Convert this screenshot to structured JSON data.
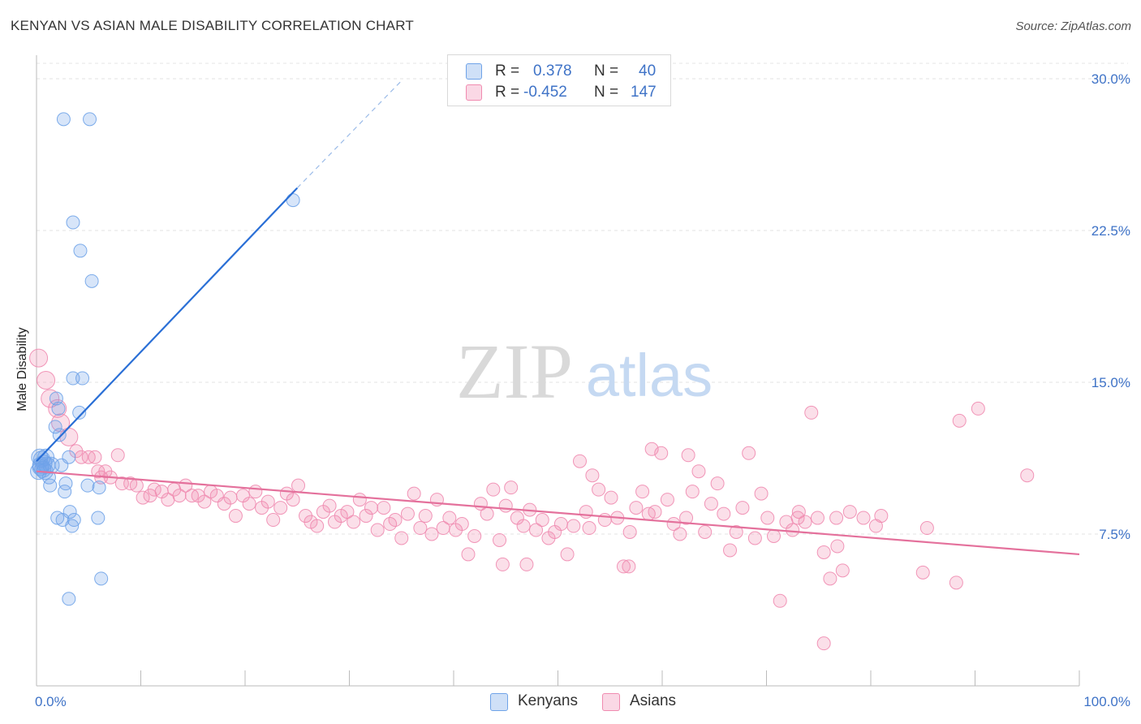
{
  "title": "KENYAN VS ASIAN MALE DISABILITY CORRELATION CHART",
  "source": "Source: ZipAtlas.com",
  "watermark": {
    "zip": "ZIP",
    "atlas": "atlas"
  },
  "legend": {
    "rows": [
      {
        "r_label": "R =",
        "r_value": "0.378",
        "n_label": "N =",
        "n_value": "40",
        "color": "#6fa3e8"
      },
      {
        "r_label": "R =",
        "r_value": "-0.452",
        "n_label": "N =",
        "n_value": "147",
        "color": "#f08bb0"
      }
    ]
  },
  "chart_data": {
    "type": "scatter",
    "title": "KENYAN VS ASIAN MALE DISABILITY CORRELATION CHART",
    "xlabel": "",
    "ylabel": "Male Disability",
    "xlim": [
      0,
      100
    ],
    "ylim": [
      0,
      30
    ],
    "x_ticks": [
      "0.0%",
      "100.0%"
    ],
    "y_ticks": [
      {
        "value": 7.5,
        "label": "7.5%"
      },
      {
        "value": 15.0,
        "label": "15.0%"
      },
      {
        "value": 22.5,
        "label": "22.5%"
      },
      {
        "value": 30.0,
        "label": "30.0%"
      }
    ],
    "grid": true,
    "series": [
      {
        "name": "Kenyans",
        "color": "#6fa3e8",
        "line_color": "#2a6fd6",
        "trend": {
          "x0": 0,
          "y0": 11.1,
          "x1": 25,
          "y1": 24.6,
          "dash_x1": 35,
          "dash_y1": 29.9
        },
        "points": [
          [
            2.6,
            28.0
          ],
          [
            5.1,
            28.0
          ],
          [
            24.6,
            24.0
          ],
          [
            3.5,
            22.9
          ],
          [
            4.2,
            21.5
          ],
          [
            5.3,
            20.0
          ],
          [
            3.5,
            15.2
          ],
          [
            4.4,
            15.2
          ],
          [
            1.9,
            14.2
          ],
          [
            4.1,
            13.5
          ],
          [
            2.1,
            13.7
          ],
          [
            1.8,
            12.8
          ],
          [
            2.2,
            12.4
          ],
          [
            0.3,
            11.3
          ],
          [
            0.5,
            11.2
          ],
          [
            0.9,
            11.3
          ],
          [
            3.1,
            11.3
          ],
          [
            0.7,
            11.0
          ],
          [
            0.4,
            10.9
          ],
          [
            0.8,
            10.6
          ],
          [
            1.4,
            10.9
          ],
          [
            2.4,
            10.9
          ],
          [
            0.2,
            10.6
          ],
          [
            0.6,
            10.7
          ],
          [
            1.2,
            10.3
          ],
          [
            1.3,
            9.9
          ],
          [
            4.9,
            9.9
          ],
          [
            6.0,
            9.8
          ],
          [
            2.7,
            9.6
          ],
          [
            3.2,
            8.6
          ],
          [
            2.0,
            8.3
          ],
          [
            2.5,
            8.2
          ],
          [
            3.6,
            8.2
          ],
          [
            5.9,
            8.3
          ],
          [
            3.4,
            7.9
          ],
          [
            6.2,
            5.3
          ],
          [
            3.1,
            4.3
          ],
          [
            0.4,
            10.8
          ],
          [
            1.0,
            10.9
          ],
          [
            2.8,
            10.0
          ]
        ]
      },
      {
        "name": "Asians",
        "color": "#f08bb0",
        "line_color": "#e4719c",
        "trend": {
          "x0": 0,
          "y0": 10.6,
          "x1": 100,
          "y1": 6.5
        },
        "points": [
          [
            0.2,
            16.2
          ],
          [
            0.9,
            15.1
          ],
          [
            1.3,
            14.2
          ],
          [
            2.0,
            13.7
          ],
          [
            2.3,
            13.0
          ],
          [
            3.1,
            12.3
          ],
          [
            3.8,
            11.6
          ],
          [
            4.3,
            11.3
          ],
          [
            5.0,
            11.3
          ],
          [
            5.6,
            11.3
          ],
          [
            7.8,
            11.4
          ],
          [
            5.9,
            10.6
          ],
          [
            6.2,
            10.3
          ],
          [
            6.6,
            10.6
          ],
          [
            7.1,
            10.3
          ],
          [
            8.2,
            10.0
          ],
          [
            9.0,
            10.0
          ],
          [
            9.6,
            9.9
          ],
          [
            10.2,
            9.3
          ],
          [
            10.9,
            9.4
          ],
          [
            11.3,
            9.7
          ],
          [
            12.0,
            9.6
          ],
          [
            12.6,
            9.2
          ],
          [
            13.2,
            9.7
          ],
          [
            13.7,
            9.4
          ],
          [
            14.3,
            9.9
          ],
          [
            14.9,
            9.4
          ],
          [
            15.5,
            9.4
          ],
          [
            16.1,
            9.1
          ],
          [
            16.7,
            9.6
          ],
          [
            17.3,
            9.4
          ],
          [
            18.0,
            9.0
          ],
          [
            18.6,
            9.3
          ],
          [
            19.1,
            8.4
          ],
          [
            19.8,
            9.4
          ],
          [
            20.4,
            9.0
          ],
          [
            21.0,
            9.6
          ],
          [
            21.6,
            8.8
          ],
          [
            22.2,
            9.1
          ],
          [
            22.7,
            8.2
          ],
          [
            23.4,
            8.8
          ],
          [
            24.0,
            9.5
          ],
          [
            24.6,
            9.2
          ],
          [
            25.1,
            9.9
          ],
          [
            25.8,
            8.4
          ],
          [
            26.3,
            8.1
          ],
          [
            26.9,
            7.9
          ],
          [
            27.5,
            8.6
          ],
          [
            28.1,
            8.9
          ],
          [
            28.6,
            8.1
          ],
          [
            29.2,
            8.4
          ],
          [
            29.8,
            8.6
          ],
          [
            30.4,
            8.1
          ],
          [
            31.0,
            9.2
          ],
          [
            31.6,
            8.4
          ],
          [
            32.1,
            8.8
          ],
          [
            32.7,
            7.7
          ],
          [
            33.3,
            8.8
          ],
          [
            33.9,
            8.0
          ],
          [
            34.4,
            8.2
          ],
          [
            35.0,
            7.3
          ],
          [
            35.6,
            8.5
          ],
          [
            36.2,
            9.5
          ],
          [
            36.8,
            7.8
          ],
          [
            37.3,
            8.4
          ],
          [
            37.9,
            7.5
          ],
          [
            38.4,
            9.2
          ],
          [
            39.0,
            7.8
          ],
          [
            39.6,
            8.3
          ],
          [
            40.2,
            7.7
          ],
          [
            40.8,
            8.0
          ],
          [
            41.4,
            6.5
          ],
          [
            42.0,
            7.4
          ],
          [
            42.6,
            9.0
          ],
          [
            43.2,
            8.5
          ],
          [
            43.8,
            9.7
          ],
          [
            44.4,
            7.2
          ],
          [
            45.0,
            8.9
          ],
          [
            45.5,
            9.8
          ],
          [
            46.1,
            8.3
          ],
          [
            46.7,
            7.9
          ],
          [
            47.3,
            8.7
          ],
          [
            47.9,
            7.7
          ],
          [
            48.5,
            8.2
          ],
          [
            49.1,
            7.3
          ],
          [
            49.7,
            7.6
          ],
          [
            50.3,
            8.0
          ],
          [
            50.9,
            6.5
          ],
          [
            51.5,
            7.9
          ],
          [
            52.1,
            11.1
          ],
          [
            52.7,
            8.6
          ],
          [
            53.3,
            10.4
          ],
          [
            53.9,
            9.7
          ],
          [
            54.5,
            8.2
          ],
          [
            55.1,
            9.3
          ],
          [
            55.7,
            8.3
          ],
          [
            56.3,
            5.9
          ],
          [
            56.9,
            7.6
          ],
          [
            57.5,
            8.8
          ],
          [
            58.1,
            9.6
          ],
          [
            58.7,
            8.5
          ],
          [
            59.3,
            8.6
          ],
          [
            59.9,
            11.5
          ],
          [
            60.5,
            9.2
          ],
          [
            61.1,
            8.0
          ],
          [
            61.7,
            7.5
          ],
          [
            62.3,
            8.3
          ],
          [
            62.9,
            9.6
          ],
          [
            63.5,
            10.6
          ],
          [
            64.1,
            7.6
          ],
          [
            64.7,
            9.0
          ],
          [
            65.3,
            10.0
          ],
          [
            65.9,
            8.5
          ],
          [
            66.5,
            6.7
          ],
          [
            67.1,
            7.6
          ],
          [
            67.7,
            8.8
          ],
          [
            68.3,
            11.5
          ],
          [
            68.9,
            7.3
          ],
          [
            69.5,
            9.5
          ],
          [
            70.1,
            8.3
          ],
          [
            70.7,
            7.4
          ],
          [
            71.3,
            4.2
          ],
          [
            71.9,
            8.1
          ],
          [
            72.5,
            7.7
          ],
          [
            73.1,
            8.6
          ],
          [
            73.7,
            8.1
          ],
          [
            74.3,
            13.5
          ],
          [
            74.9,
            8.3
          ],
          [
            75.5,
            6.6
          ],
          [
            76.1,
            5.3
          ],
          [
            76.7,
            8.3
          ],
          [
            77.3,
            5.7
          ],
          [
            78.0,
            8.6
          ],
          [
            79.3,
            8.3
          ],
          [
            81.0,
            8.4
          ],
          [
            85.0,
            5.6
          ],
          [
            88.2,
            5.1
          ],
          [
            88.5,
            13.1
          ],
          [
            90.3,
            13.7
          ],
          [
            95.0,
            10.4
          ],
          [
            75.5,
            2.1
          ],
          [
            85.4,
            7.8
          ],
          [
            76.8,
            6.9
          ],
          [
            80.5,
            7.9
          ],
          [
            56.8,
            5.9
          ],
          [
            59.0,
            11.7
          ],
          [
            44.7,
            6.0
          ],
          [
            47.0,
            6.0
          ],
          [
            53.0,
            7.8
          ],
          [
            62.5,
            11.4
          ],
          [
            73.0,
            8.3
          ]
        ]
      }
    ]
  }
}
